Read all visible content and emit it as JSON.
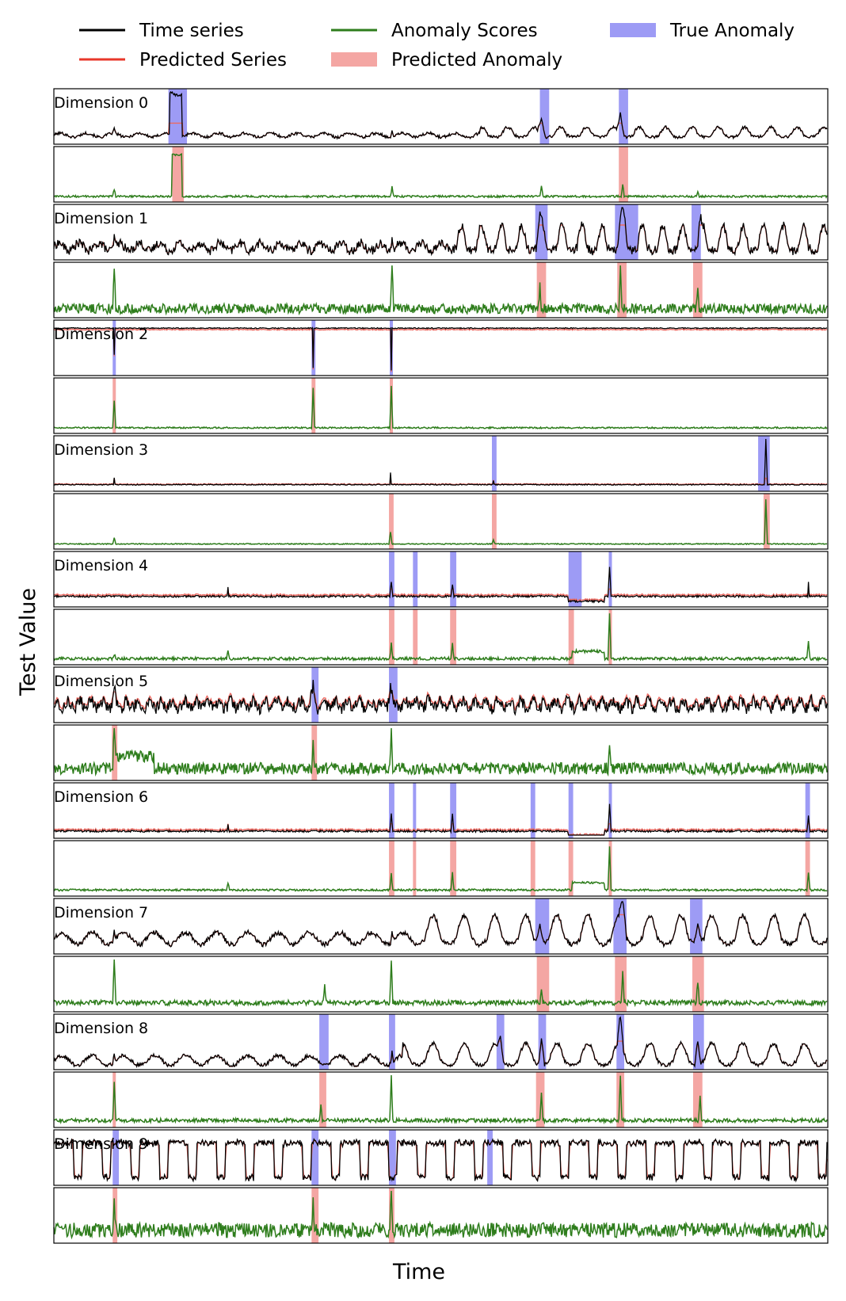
{
  "chart_data": {
    "type": "line",
    "xlabel": "Time",
    "ylabel": "Test Value",
    "grid": false,
    "legend_placement": "top",
    "legend": [
      {
        "label": "Time series",
        "kind": "line",
        "color": "#000000"
      },
      {
        "label": "Predicted Series",
        "kind": "line",
        "color": "#e8372a"
      },
      {
        "label": "Anomaly Scores",
        "kind": "line",
        "color": "#2e7d1c"
      },
      {
        "label": "Predicted Anomaly",
        "kind": "patch",
        "color": "#f4a6a3"
      },
      {
        "label": "True Anomaly",
        "kind": "patch",
        "color": "#9d9bf5"
      }
    ],
    "colors": {
      "time_series": "#000000",
      "predicted_series": "#e8372a",
      "anomaly_scores": "#2e7d1c",
      "predicted_anomaly": "#f4a6a3",
      "true_anomaly": "#9d9bf5"
    },
    "x_range": [
      0,
      1000
    ],
    "dimensions": [
      {
        "label": "Dimension 0",
        "base": 0.12,
        "noise": 0.03,
        "period": 34,
        "amp": 0.04,
        "trend_from": 0.55,
        "trend_amp": 0.12,
        "pred_lag": 1,
        "spikes": [
          [
            78,
            0.1,
            1
          ],
          [
            437,
            0.1,
            1
          ],
          [
            630,
            0.35,
            4
          ],
          [
            732,
            0.45,
            4
          ]
        ],
        "plateaus": [
          [
            150,
            166,
            0.85
          ]
        ],
        "true_anomaly": [
          [
            148,
            172
          ],
          [
            628,
            640
          ],
          [
            730,
            742
          ]
        ],
        "predicted_anomaly": [
          [
            153,
            168
          ],
          [
            730,
            742
          ]
        ],
        "score": {
          "base": 0.05,
          "noise": 0.02,
          "spikes": [
            [
              78,
              0.15
            ],
            [
              437,
              0.2
            ],
            [
              630,
              0.22
            ],
            [
              735,
              0.25
            ],
            [
              832,
              0.1
            ]
          ],
          "plateaus": [
            [
              153,
              166,
              0.85
            ]
          ]
        }
      },
      {
        "label": "Dimension 1",
        "base": 0.2,
        "noise": 0.09,
        "period": 26,
        "amp": 0.08,
        "trend_from": 0.52,
        "trend_amp": 0.35,
        "pred_lag": 1,
        "spikes": [
          [
            78,
            0.2,
            1
          ],
          [
            437,
            0.2,
            1
          ],
          [
            628,
            0.4,
            3
          ],
          [
            735,
            0.5,
            5
          ],
          [
            835,
            0.3,
            3
          ]
        ],
        "plateaus": [],
        "true_anomaly": [
          [
            622,
            638
          ],
          [
            725,
            755
          ],
          [
            824,
            836
          ]
        ],
        "predicted_anomaly": [
          [
            624,
            636
          ],
          [
            728,
            740
          ],
          [
            826,
            838
          ]
        ],
        "score": {
          "base": 0.12,
          "noise": 0.1,
          "spikes": [
            [
              78,
              0.85
            ],
            [
              437,
              0.9
            ],
            [
              628,
              0.55
            ],
            [
              732,
              0.8
            ],
            [
              832,
              0.45
            ]
          ],
          "plateaus": []
        }
      },
      {
        "label": "Dimension 2",
        "base": 0.9,
        "noise": 0.01,
        "period": 0,
        "amp": 0,
        "trend_from": 1,
        "trend_amp": 0,
        "pred_lag": 0,
        "pred_offset": -0.03,
        "spikes": [
          [
            78,
            -0.55,
            0
          ],
          [
            335,
            -0.8,
            0
          ],
          [
            436,
            -0.85,
            0
          ]
        ],
        "plateaus": [],
        "true_anomaly": [
          [
            76,
            80
          ],
          [
            333,
            338
          ],
          [
            434,
            438
          ]
        ],
        "predicted_anomaly": [
          [
            76,
            80
          ],
          [
            333,
            338
          ],
          [
            434,
            438
          ]
        ],
        "score": {
          "base": 0.05,
          "noise": 0.015,
          "spikes": [
            [
              78,
              0.55
            ],
            [
              335,
              0.8
            ],
            [
              436,
              0.85
            ]
          ],
          "plateaus": []
        }
      },
      {
        "label": "Dimension 3",
        "base": 0.07,
        "noise": 0.01,
        "period": 0,
        "amp": 0,
        "trend_from": 1,
        "trend_amp": 0,
        "pred_lag": 0,
        "pred_offset": 0.01,
        "spikes": [
          [
            78,
            0.15,
            0
          ],
          [
            435,
            0.25,
            0
          ],
          [
            568,
            0.08,
            0
          ],
          [
            920,
            0.95,
            1
          ]
        ],
        "plateaus": [],
        "true_anomaly": [
          [
            566,
            572
          ],
          [
            910,
            925
          ]
        ],
        "predicted_anomaly": [
          [
            433,
            439
          ],
          [
            566,
            572
          ],
          [
            917,
            925
          ]
        ],
        "score": {
          "base": 0.04,
          "noise": 0.01,
          "spikes": [
            [
              78,
              0.12
            ],
            [
              435,
              0.25
            ],
            [
              568,
              0.08
            ],
            [
              920,
              0.92
            ]
          ],
          "plateaus": []
        }
      },
      {
        "label": "Dimension 4",
        "base": 0.15,
        "noise": 0.02,
        "period": 0,
        "amp": 0,
        "trend_from": 1,
        "trend_amp": 0,
        "pred_lag": 0,
        "pred_offset": 0.03,
        "spikes": [
          [
            225,
            0.2,
            0
          ],
          [
            436,
            0.3,
            1
          ],
          [
            515,
            0.25,
            1
          ],
          [
            718,
            0.6,
            1
          ],
          [
            975,
            0.3,
            0
          ]
        ],
        "plateaus": [
          [
            665,
            712,
            -0.1
          ]
        ],
        "true_anomaly": [
          [
            433,
            440
          ],
          [
            464,
            470
          ],
          [
            512,
            520
          ],
          [
            665,
            682
          ],
          [
            717,
            721
          ]
        ],
        "predicted_anomaly": [
          [
            433,
            440
          ],
          [
            464,
            470
          ],
          [
            512,
            520
          ],
          [
            665,
            672
          ],
          [
            717,
            721
          ]
        ],
        "score": {
          "base": 0.06,
          "noise": 0.03,
          "spikes": [
            [
              78,
              0.1
            ],
            [
              225,
              0.15
            ],
            [
              436,
              0.3
            ],
            [
              515,
              0.3
            ],
            [
              718,
              0.95
            ],
            [
              975,
              0.35
            ]
          ],
          "plateaus": [
            [
              670,
              712,
              0.15
            ]
          ]
        }
      },
      {
        "label": "Dimension 5",
        "base": 0.3,
        "noise": 0.12,
        "period": 15,
        "amp": 0.08,
        "trend_from": 1,
        "trend_amp": 0,
        "pred_lag": 1,
        "pred_offset": 0.06,
        "spikes": [
          [
            78,
            0.3,
            2
          ],
          [
            335,
            0.35,
            3
          ],
          [
            435,
            0.4,
            3
          ]
        ],
        "plateaus": [],
        "true_anomaly": [
          [
            333,
            342
          ],
          [
            433,
            444
          ]
        ],
        "predicted_anomaly": [
          [
            75,
            82
          ],
          [
            333,
            340
          ]
        ],
        "score": {
          "base": 0.18,
          "noise": 0.12,
          "spikes": [
            [
              78,
              0.9
            ],
            [
              335,
              0.55
            ],
            [
              436,
              0.85
            ],
            [
              718,
              0.45
            ]
          ],
          "plateaus": [
            [
              80,
              130,
              0.25
            ]
          ]
        }
      },
      {
        "label": "Dimension 6",
        "base": 0.08,
        "noise": 0.02,
        "period": 0,
        "amp": 0,
        "trend_from": 1,
        "trend_amp": 0,
        "pred_lag": 0,
        "pred_offset": 0.03,
        "spikes": [
          [
            225,
            0.15,
            0
          ],
          [
            436,
            0.35,
            1
          ],
          [
            515,
            0.35,
            1
          ],
          [
            718,
            0.55,
            1
          ],
          [
            975,
            0.3,
            1
          ]
        ],
        "plateaus": [
          [
            665,
            712,
            -0.1
          ]
        ],
        "true_anomaly": [
          [
            433,
            440
          ],
          [
            464,
            468
          ],
          [
            512,
            520
          ],
          [
            616,
            622
          ],
          [
            665,
            671
          ],
          [
            717,
            721
          ],
          [
            971,
            977
          ]
        ],
        "predicted_anomaly": [
          [
            433,
            440
          ],
          [
            464,
            468
          ],
          [
            512,
            520
          ],
          [
            616,
            622
          ],
          [
            665,
            671
          ],
          [
            717,
            721
          ],
          [
            971,
            977
          ]
        ],
        "score": {
          "base": 0.06,
          "noise": 0.02,
          "spikes": [
            [
              225,
              0.15
            ],
            [
              436,
              0.35
            ],
            [
              515,
              0.35
            ],
            [
              718,
              0.9
            ],
            [
              975,
              0.35
            ]
          ],
          "plateaus": [
            [
              670,
              712,
              0.15
            ]
          ]
        }
      },
      {
        "label": "Dimension 7",
        "base": 0.25,
        "noise": 0.05,
        "period": 40,
        "amp": 0.12,
        "trend_from": 0.48,
        "trend_amp": 0.35,
        "pred_lag": 1,
        "spikes": [
          [
            78,
            0.2,
            1
          ],
          [
            437,
            0.2,
            1
          ],
          [
            628,
            0.4,
            4
          ],
          [
            735,
            0.5,
            4
          ],
          [
            832,
            0.4,
            4
          ]
        ],
        "plateaus": [],
        "true_anomaly": [
          [
            622,
            640
          ],
          [
            723,
            740
          ],
          [
            822,
            838
          ]
        ],
        "predicted_anomaly": [
          [
            624,
            640
          ],
          [
            725,
            740
          ],
          [
            825,
            840
          ]
        ],
        "score": {
          "base": 0.12,
          "noise": 0.05,
          "spikes": [
            [
              78,
              0.9
            ],
            [
              350,
              0.35
            ],
            [
              436,
              0.9
            ],
            [
              630,
              0.3
            ],
            [
              735,
              0.65
            ],
            [
              832,
              0.45
            ]
          ],
          "plateaus": []
        }
      },
      {
        "label": "Dimension 8",
        "base": 0.12,
        "noise": 0.04,
        "period": 40,
        "amp": 0.1,
        "trend_from": 0.45,
        "trend_amp": 0.25,
        "pred_lag": 1,
        "spikes": [
          [
            78,
            0.15,
            1
          ],
          [
            437,
            0.25,
            1
          ],
          [
            577,
            0.35,
            3
          ],
          [
            630,
            0.55,
            3
          ],
          [
            732,
            0.65,
            3
          ],
          [
            832,
            0.5,
            3
          ]
        ],
        "plateaus": [],
        "true_anomaly": [
          [
            343,
            355
          ],
          [
            433,
            441
          ],
          [
            572,
            582
          ],
          [
            626,
            636
          ],
          [
            727,
            737
          ],
          [
            826,
            840
          ]
        ],
        "predicted_anomaly": [
          [
            76,
            80
          ],
          [
            343,
            352
          ],
          [
            623,
            634
          ],
          [
            727,
            737
          ],
          [
            826,
            838
          ]
        ],
        "score": {
          "base": 0.08,
          "noise": 0.04,
          "spikes": [
            [
              78,
              0.75
            ],
            [
              345,
              0.3
            ],
            [
              436,
              0.9
            ],
            [
              630,
              0.6
            ],
            [
              732,
              0.95
            ],
            [
              835,
              0.5
            ]
          ],
          "plateaus": []
        }
      },
      {
        "label": "Dimension 9",
        "base": 0.45,
        "noise": 0.06,
        "period": 37,
        "amp": 0.35,
        "trend_from": 1,
        "trend_amp": 0,
        "pred_lag": 1,
        "square": true,
        "spikes": [],
        "plateaus": [],
        "true_anomaly": [
          [
            76,
            84
          ],
          [
            333,
            342
          ],
          [
            433,
            442
          ],
          [
            560,
            567
          ]
        ],
        "predicted_anomaly": [
          [
            76,
            82
          ],
          [
            333,
            342
          ],
          [
            433,
            440
          ]
        ],
        "score": {
          "base": 0.2,
          "noise": 0.15,
          "spikes": [
            [
              78,
              0.75
            ],
            [
              335,
              0.55
            ],
            [
              436,
              0.95
            ]
          ],
          "plateaus": []
        }
      }
    ]
  }
}
